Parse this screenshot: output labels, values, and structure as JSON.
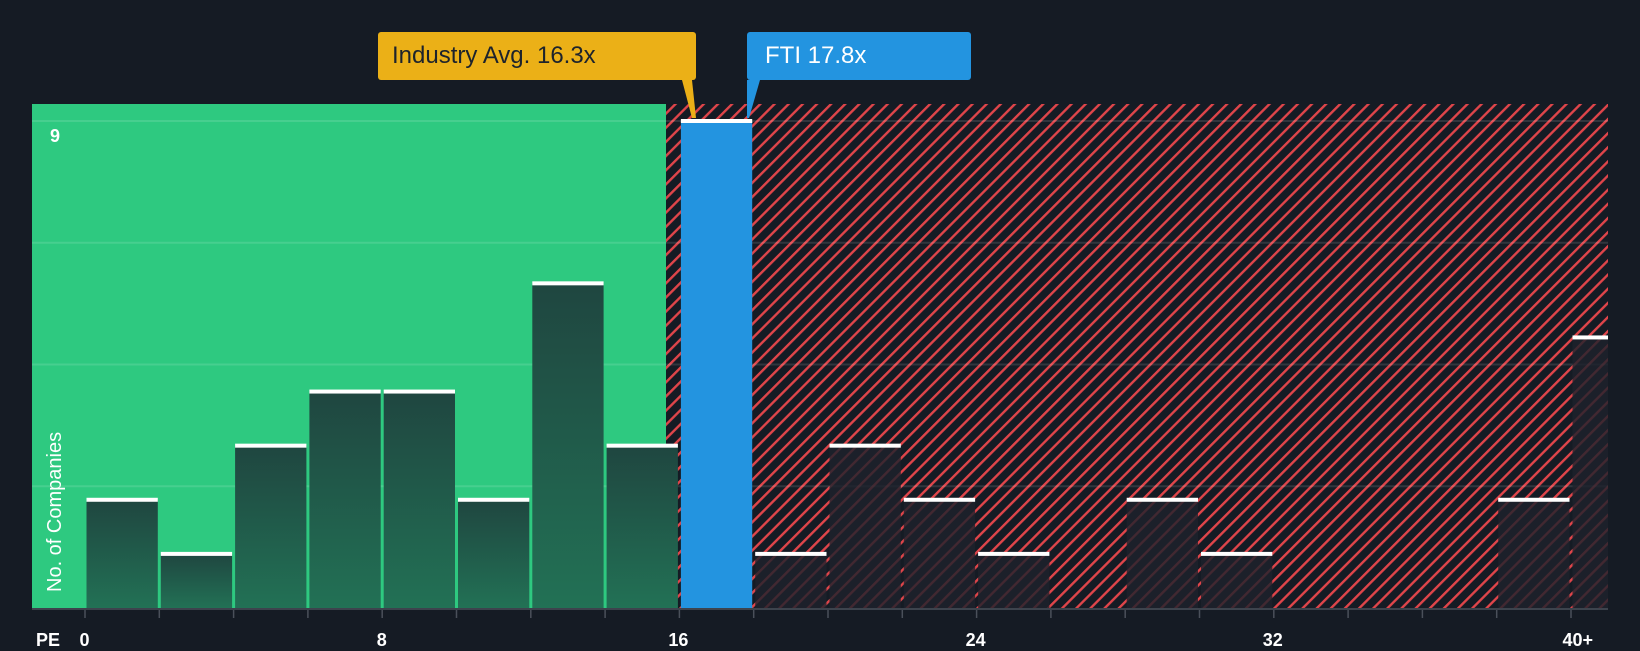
{
  "chart_data": {
    "type": "bar",
    "title": "",
    "xlabel": "PE",
    "ylabel": "No. of Companies",
    "x_ticks": [
      "0",
      "8",
      "16",
      "24",
      "32",
      "40+"
    ],
    "y_ticks": [
      "9"
    ],
    "ylim": [
      0,
      9
    ],
    "grid": true,
    "bin_width": 2,
    "categories": [
      "0-2",
      "2-4",
      "4-6",
      "6-8",
      "8-10",
      "10-12",
      "12-14",
      "14-16",
      "16-18",
      "18-20",
      "20-22",
      "22-24",
      "24-26",
      "26-28",
      "28-30",
      "30-32",
      "32-34",
      "34-36",
      "36-38",
      "38-40",
      "40+"
    ],
    "values": [
      2,
      1,
      3,
      4,
      4,
      2,
      6,
      3,
      9,
      1,
      3,
      2,
      1,
      0,
      2,
      1,
      0,
      0,
      0,
      2,
      5
    ],
    "highlight": {
      "bin": "16-18",
      "label": "FTI 17.8x",
      "value": 17.8,
      "color": "#2394e0"
    },
    "industry_average": {
      "label": "Industry Avg. 16.3x",
      "value": 16.3,
      "color": "#ebb017"
    },
    "regions": [
      {
        "name": "below-average",
        "from": 0,
        "to": 16.3,
        "color": "#2ec980"
      },
      {
        "name": "above-average",
        "from": 16.3,
        "to": 42,
        "color": "#e0454a",
        "pattern": "diagonal-hatch"
      }
    ]
  },
  "labels": {
    "industry_avg": "Industry Avg. 16.3x",
    "fti": "FTI 17.8x",
    "y_title": "No. of Companies",
    "x_title": "PE",
    "y_max_tick": "9"
  },
  "colors": {
    "background": "#151b24",
    "green": "#2ec980",
    "bar_dark": "#1f4a3e",
    "hatch_red": "#e0454a",
    "fti_blue": "#2394e0",
    "avg_gold": "#ebb017"
  }
}
